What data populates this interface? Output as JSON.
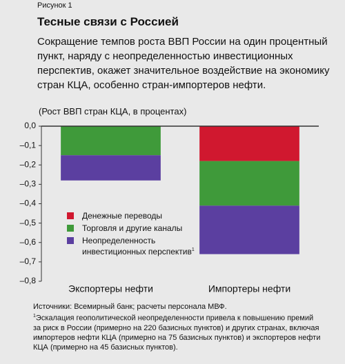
{
  "figure_label": "Рисунок 1",
  "chart_data": {
    "type": "stacked-bar",
    "title": "Тесные связи с Россией",
    "subtitle": "Сокращение темпов роста ВВП России на один процентный пункт, наряду с неопределенностью инвестиционных перспектив, окажет значительное воздействие на экономику стран КЦА, особенно стран-импортеров нефти.",
    "y_label": "(Рост ВВП стран КЦА, в процентах)",
    "categories": [
      "Экспортеры нефти",
      "Импортеры нефти"
    ],
    "series": [
      {
        "name": "Денежные переводы",
        "color": "#d0182f",
        "values": [
          0,
          -0.18
        ]
      },
      {
        "name": "Торговля и другие каналы",
        "color": "#3f9a3a",
        "values": [
          -0.15,
          -0.23
        ]
      },
      {
        "name": "Неопределенность инвестиционных перспектив",
        "color": "#5b3fa0",
        "values": [
          -0.13,
          -0.25
        ]
      }
    ],
    "legend_note_mark": "1",
    "ylim": [
      -0.8,
      0
    ],
    "yticks": [
      {
        "value": 0,
        "label": "0,0"
      },
      {
        "value": -0.1,
        "label": "–0,1"
      },
      {
        "value": -0.2,
        "label": "–0,2"
      },
      {
        "value": -0.3,
        "label": "–0,3"
      },
      {
        "value": -0.4,
        "label": "–0,4"
      },
      {
        "value": -0.5,
        "label": "–0,5"
      },
      {
        "value": -0.6,
        "label": "–0,6"
      },
      {
        "value": -0.7,
        "label": "–0,7"
      },
      {
        "value": -0.8,
        "label": "–0,8"
      }
    ]
  },
  "notes": [
    "Источники: Всемирный банк; расчеты персонала МВФ.",
    "Эскалация геополитической неопределенности привела к повышению премий за риск в России (примерно на 220 базисных пунктов) и других странах, включая импортеров нефти КЦА (примерно на 75 базисных пунктов) и экспортеров нефти КЦА (примерно на  45 базисных пунктов)."
  ],
  "note_mark": "1"
}
